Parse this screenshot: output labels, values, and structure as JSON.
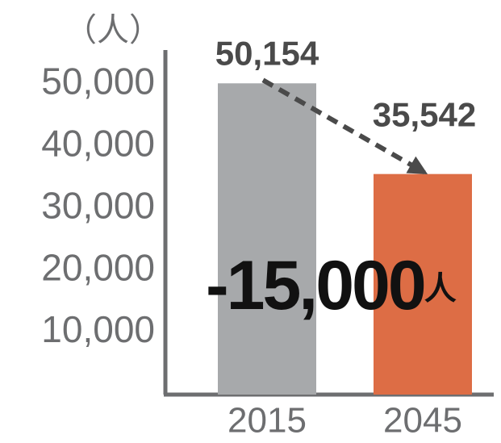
{
  "chart_data": {
    "type": "bar",
    "y_label": "（人）",
    "categories": [
      "2015",
      "2045"
    ],
    "values": [
      50154,
      35542
    ],
    "value_labels": [
      "50,154",
      "35,542"
    ],
    "colors": [
      "#a7a9ab",
      "#dd6d45"
    ],
    "ylim": [
      0,
      55000
    ],
    "yticks": [
      {
        "value": 10000,
        "label": "10,000"
      },
      {
        "value": 20000,
        "label": "20,000"
      },
      {
        "value": 30000,
        "label": "30,000"
      },
      {
        "value": 40000,
        "label": "40,000"
      },
      {
        "value": 50000,
        "label": "50,000"
      }
    ],
    "grid": false,
    "annotation": {
      "text": "-15,000",
      "unit": "人"
    }
  }
}
